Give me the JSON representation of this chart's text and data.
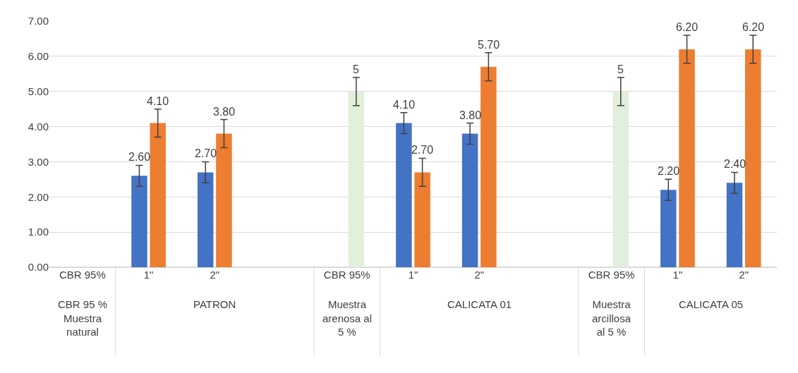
{
  "chart_data": {
    "type": "bar",
    "categories": [
      "CBR 95%",
      "1\"",
      "2\"",
      null,
      "CBR 95%",
      "1\"",
      "2\"",
      null,
      "CBR 95%",
      "1\"",
      "2\""
    ],
    "series": [
      {
        "color": "#4472c4",
        "values": [
          null,
          2.6,
          2.7,
          null,
          null,
          4.1,
          3.8,
          null,
          null,
          2.2,
          2.4
        ],
        "errors": [
          null,
          0.3,
          0.3,
          null,
          null,
          0.3,
          0.3,
          null,
          null,
          0.3,
          0.3
        ],
        "value_labels": [
          null,
          "2.60",
          "2.70",
          null,
          null,
          "4.10",
          "3.80",
          null,
          null,
          "2.20",
          "2.40"
        ]
      },
      {
        "color": "#ed7d31",
        "colors": [
          "#ed7d31",
          "#ed7d31",
          "#ed7d31",
          "#ed7d31",
          "#e2efda",
          "#ed7d31",
          "#ed7d31",
          "#ed7d31",
          "#e2efda",
          "#ed7d31",
          "#ed7d31"
        ],
        "values": [
          null,
          4.1,
          3.8,
          null,
          5,
          2.7,
          5.7,
          null,
          5,
          6.2,
          6.2
        ],
        "errors": [
          null,
          0.4,
          0.4,
          null,
          0.4,
          0.4,
          0.4,
          null,
          0.4,
          0.4,
          0.4
        ],
        "value_labels": [
          null,
          "4.10",
          "3.80",
          null,
          "5",
          "2.70",
          "5.70",
          null,
          "5",
          "6.20",
          "6.20"
        ]
      }
    ],
    "annotations": [
      "CBR 95 % Muestra natural",
      "PATRON",
      "Muestra arenosa al 5 %",
      "CALICATA 01",
      "Muestra arcillosa al 5 %",
      "CALICATA 05"
    ],
    "ylim": [
      0,
      7
    ],
    "yticks": [
      {
        "value": 0,
        "label": "0.00"
      },
      {
        "value": 1,
        "label": "1.00"
      },
      {
        "value": 2,
        "label": "2.00"
      },
      {
        "value": 3,
        "label": "3.00"
      },
      {
        "value": 4,
        "label": "4.00"
      },
      {
        "value": 5,
        "label": "5.00"
      },
      {
        "value": 6,
        "label": "6.00"
      },
      {
        "value": 7,
        "label": "7.00"
      }
    ],
    "grid": "y"
  }
}
